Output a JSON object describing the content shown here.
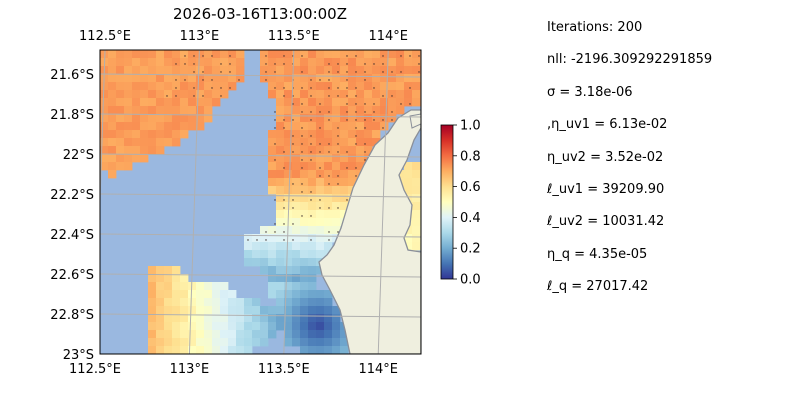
{
  "chart_data": {
    "type": "heatmap",
    "title": "2026-03-16T13:00:00Z",
    "xlabel": "",
    "ylabel": "",
    "x_ticks": [
      "112.5°E",
      "113°E",
      "113.5°E",
      "114°E"
    ],
    "x_tick_values": [
      112.5,
      113.0,
      113.5,
      114.0
    ],
    "y_ticks": [
      "21.6°S",
      "21.8°S",
      "22°S",
      "22.2°S",
      "22.4°S",
      "22.6°S",
      "22.8°S",
      "23°S"
    ],
    "y_tick_values": [
      -21.6,
      -21.8,
      -22.0,
      -22.2,
      -22.4,
      -22.6,
      -22.8,
      -23.0
    ],
    "xlim": [
      112.5,
      114.2
    ],
    "ylim": [
      -23.0,
      -21.48
    ],
    "grid": true,
    "colormap": "RdYlBu_r",
    "color_range": [
      0.0,
      1.0
    ],
    "colorbar_ticks": [
      "0.0",
      "0.2",
      "0.4",
      "0.6",
      "0.8",
      "1.0"
    ],
    "colorbar_tick_values": [
      0.0,
      0.2,
      0.4,
      0.6,
      0.8,
      1.0
    ],
    "ocean_color": "#9ab8e0",
    "land_color": "#efefdf",
    "coast_color": "#8a8f99",
    "grid_color": "#b0b0b0"
  },
  "params": [
    "Iterations: 200",
    "nll: -2196.309292291859",
    "σ = 3.18e-06",
    ",η_uv1 = 6.13e-02",
    "η_uv2 = 3.52e-02",
    "ℓ_uv1 = 39209.90",
    "ℓ_uv2 = 10031.42",
    "η_q = 4.35e-05",
    "ℓ_q = 27017.42"
  ]
}
